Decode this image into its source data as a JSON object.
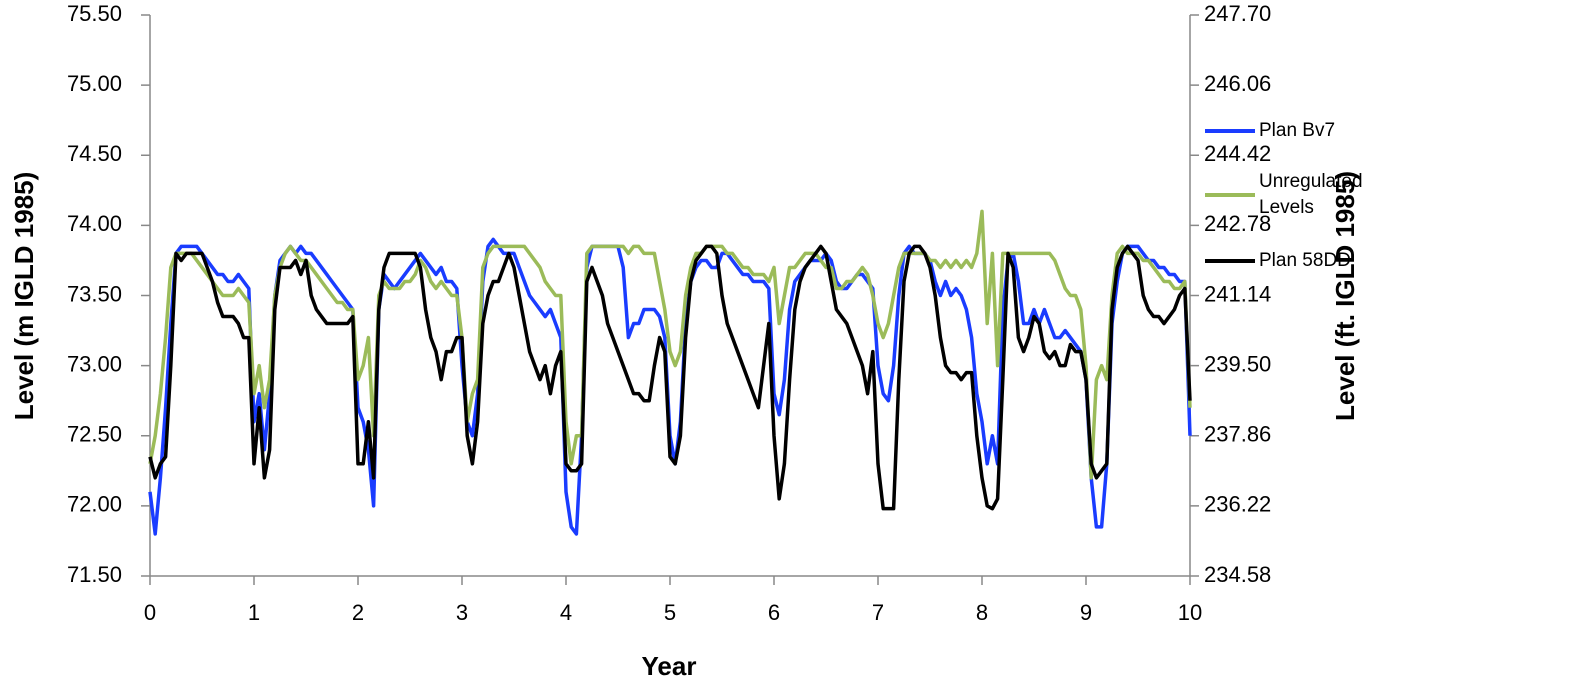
{
  "chart_data": {
    "type": "line",
    "y_label": "Level (m IGLD 1985)",
    "y2_label": "Level (ft. IGLD 1985)",
    "x_label": "Year",
    "xlim": [
      0,
      10
    ],
    "xticks": [
      0,
      1,
      2,
      3,
      4,
      5,
      6,
      7,
      8,
      9,
      10
    ],
    "ylim": [
      71.5,
      75.5
    ],
    "yticks": [
      {
        "value": 71.5,
        "label": "71.50"
      },
      {
        "value": 72,
        "label": "72.00"
      },
      {
        "value": 72.5,
        "label": "72.50"
      },
      {
        "value": 73,
        "label": "73.00"
      },
      {
        "value": 73.5,
        "label": "73.50"
      },
      {
        "value": 74,
        "label": "74.00"
      },
      {
        "value": 74.5,
        "label": "74.50"
      },
      {
        "value": 75,
        "label": "75.00"
      },
      {
        "value": 75.5,
        "label": "75.50"
      }
    ],
    "y2lim": [
      234.58,
      247.7
    ],
    "y2ticks": [
      234.58,
      236.22,
      237.86,
      {
        "value": 239.5,
        "label": "239.50"
      },
      241.14,
      242.78,
      244.42,
      246.06,
      {
        "value": 247.7,
        "label": "247.70"
      }
    ],
    "legend": "right",
    "x": [
      0,
      0.05,
      0.1,
      0.15,
      0.2,
      0.25,
      0.3,
      0.35,
      0.4,
      0.45,
      0.5,
      0.55,
      0.6,
      0.65,
      0.7,
      0.75,
      0.8,
      0.85,
      0.9,
      0.95,
      1,
      1.05,
      1.1,
      1.15,
      1.2,
      1.25,
      1.3,
      1.35,
      1.4,
      1.45,
      1.5,
      1.55,
      1.6,
      1.65,
      1.7,
      1.75,
      1.8,
      1.85,
      1.9,
      1.95,
      2,
      2.05,
      2.1,
      2.15,
      2.2,
      2.25,
      2.3,
      2.35,
      2.4,
      2.45,
      2.5,
      2.55,
      2.6,
      2.65,
      2.7,
      2.75,
      2.8,
      2.85,
      2.9,
      2.95,
      3,
      3.05,
      3.1,
      3.15,
      3.2,
      3.25,
      3.3,
      3.35,
      3.4,
      3.45,
      3.5,
      3.55,
      3.6,
      3.65,
      3.7,
      3.75,
      3.8,
      3.85,
      3.9,
      3.95,
      4,
      4.05,
      4.1,
      4.15,
      4.2,
      4.25,
      4.3,
      4.35,
      4.4,
      4.45,
      4.5,
      4.55,
      4.6,
      4.65,
      4.7,
      4.75,
      4.8,
      4.85,
      4.9,
      4.95,
      5,
      5.05,
      5.1,
      5.15,
      5.2,
      5.25,
      5.3,
      5.35,
      5.4,
      5.45,
      5.5,
      5.55,
      5.6,
      5.65,
      5.7,
      5.75,
      5.8,
      5.85,
      5.9,
      5.95,
      6,
      6.05,
      6.1,
      6.15,
      6.2,
      6.25,
      6.3,
      6.35,
      6.4,
      6.45,
      6.5,
      6.55,
      6.6,
      6.65,
      6.7,
      6.75,
      6.8,
      6.85,
      6.9,
      6.95,
      7,
      7.05,
      7.1,
      7.15,
      7.2,
      7.25,
      7.3,
      7.35,
      7.4,
      7.45,
      7.5,
      7.55,
      7.6,
      7.65,
      7.7,
      7.75,
      7.8,
      7.85,
      7.9,
      7.95,
      8,
      8.05,
      8.1,
      8.15,
      8.2,
      8.25,
      8.3,
      8.35,
      8.4,
      8.45,
      8.5,
      8.55,
      8.6,
      8.65,
      8.7,
      8.75,
      8.8,
      8.85,
      8.9,
      8.95,
      9,
      9.05,
      9.1,
      9.15,
      9.2,
      9.25,
      9.3,
      9.35,
      9.4,
      9.45,
      9.5,
      9.55,
      9.6,
      9.65,
      9.7,
      9.75,
      9.8,
      9.85,
      9.9,
      9.95,
      10
    ],
    "series": [
      {
        "name": "Plan Bv7",
        "color": "#1a3cff",
        "values": [
          72.1,
          71.8,
          72.2,
          72.7,
          73.3,
          73.8,
          73.85,
          73.85,
          73.85,
          73.85,
          73.8,
          73.75,
          73.7,
          73.65,
          73.65,
          73.6,
          73.6,
          73.65,
          73.6,
          73.55,
          72.6,
          72.8,
          72.4,
          72.8,
          73.5,
          73.75,
          73.8,
          73.85,
          73.8,
          73.85,
          73.8,
          73.8,
          73.75,
          73.7,
          73.65,
          73.6,
          73.55,
          73.5,
          73.45,
          73.4,
          72.7,
          72.6,
          72.4,
          72.0,
          73.4,
          73.65,
          73.6,
          73.55,
          73.6,
          73.65,
          73.7,
          73.75,
          73.8,
          73.75,
          73.7,
          73.65,
          73.7,
          73.6,
          73.6,
          73.55,
          73.0,
          72.6,
          72.5,
          72.8,
          73.6,
          73.85,
          73.9,
          73.85,
          73.8,
          73.8,
          73.8,
          73.7,
          73.6,
          73.5,
          73.45,
          73.4,
          73.35,
          73.4,
          73.3,
          73.2,
          72.1,
          71.85,
          71.8,
          72.5,
          73.7,
          73.85,
          73.85,
          73.85,
          73.85,
          73.85,
          73.85,
          73.7,
          73.2,
          73.3,
          73.3,
          73.4,
          73.4,
          73.4,
          73.35,
          73.2,
          72.5,
          72.3,
          72.6,
          73.3,
          73.6,
          73.7,
          73.75,
          73.75,
          73.7,
          73.7,
          73.8,
          73.8,
          73.75,
          73.7,
          73.65,
          73.65,
          73.6,
          73.6,
          73.6,
          73.55,
          72.8,
          72.65,
          72.9,
          73.4,
          73.6,
          73.65,
          73.7,
          73.75,
          73.75,
          73.75,
          73.8,
          73.75,
          73.6,
          73.55,
          73.55,
          73.6,
          73.65,
          73.65,
          73.6,
          73.55,
          73.0,
          72.8,
          72.75,
          73.0,
          73.5,
          73.8,
          73.85,
          73.8,
          73.8,
          73.8,
          73.75,
          73.6,
          73.5,
          73.6,
          73.5,
          73.55,
          73.5,
          73.4,
          73.2,
          72.8,
          72.6,
          72.3,
          72.5,
          72.3,
          73.4,
          73.75,
          73.8,
          73.6,
          73.3,
          73.3,
          73.4,
          73.3,
          73.4,
          73.3,
          73.2,
          73.2,
          73.25,
          73.2,
          73.15,
          73.1,
          72.9,
          72.2,
          71.85,
          71.85,
          72.3,
          73.3,
          73.6,
          73.8,
          73.85,
          73.85,
          73.85,
          73.8,
          73.75,
          73.75,
          73.7,
          73.7,
          73.65,
          73.65,
          73.6,
          73.6,
          72.5
        ]
      },
      {
        "name": "Unregulated Levels",
        "color": "#9bbb59",
        "values": [
          72.3,
          72.5,
          72.8,
          73.2,
          73.7,
          73.8,
          73.8,
          73.8,
          73.8,
          73.75,
          73.7,
          73.65,
          73.6,
          73.55,
          73.5,
          73.5,
          73.5,
          73.55,
          73.5,
          73.45,
          72.8,
          73.0,
          72.7,
          72.9,
          73.5,
          73.7,
          73.8,
          73.85,
          73.8,
          73.75,
          73.75,
          73.7,
          73.65,
          73.6,
          73.55,
          73.5,
          73.45,
          73.45,
          73.4,
          73.4,
          72.9,
          73.0,
          73.2,
          72.5,
          73.5,
          73.6,
          73.55,
          73.55,
          73.55,
          73.6,
          73.6,
          73.65,
          73.75,
          73.7,
          73.6,
          73.55,
          73.6,
          73.55,
          73.5,
          73.5,
          73.2,
          72.6,
          72.8,
          72.9,
          73.7,
          73.8,
          73.85,
          73.85,
          73.85,
          73.85,
          73.85,
          73.85,
          73.85,
          73.8,
          73.75,
          73.7,
          73.6,
          73.55,
          73.5,
          73.5,
          72.6,
          72.3,
          72.5,
          72.5,
          73.8,
          73.85,
          73.85,
          73.85,
          73.85,
          73.85,
          73.85,
          73.85,
          73.8,
          73.85,
          73.85,
          73.8,
          73.8,
          73.8,
          73.6,
          73.4,
          73.1,
          73.0,
          73.1,
          73.5,
          73.7,
          73.8,
          73.8,
          73.85,
          73.85,
          73.85,
          73.85,
          73.8,
          73.8,
          73.75,
          73.7,
          73.7,
          73.65,
          73.65,
          73.65,
          73.6,
          73.7,
          73.3,
          73.5,
          73.7,
          73.7,
          73.75,
          73.8,
          73.8,
          73.8,
          73.75,
          73.7,
          73.7,
          73.55,
          73.55,
          73.6,
          73.6,
          73.65,
          73.7,
          73.65,
          73.5,
          73.3,
          73.2,
          73.3,
          73.5,
          73.7,
          73.8,
          73.8,
          73.8,
          73.8,
          73.8,
          73.75,
          73.75,
          73.7,
          73.75,
          73.7,
          73.75,
          73.7,
          73.75,
          73.7,
          73.8,
          74.1,
          73.3,
          73.8,
          73.0,
          73.8,
          73.8,
          73.8,
          73.8,
          73.8,
          73.8,
          73.8,
          73.8,
          73.8,
          73.8,
          73.75,
          73.65,
          73.55,
          73.5,
          73.5,
          73.4,
          73.0,
          72.2,
          72.9,
          73.0,
          72.9,
          73.5,
          73.8,
          73.85,
          73.8,
          73.8,
          73.8,
          73.75,
          73.75,
          73.7,
          73.65,
          73.6,
          73.6,
          73.55,
          73.55,
          73.6,
          72.7
        ]
      },
      {
        "name": "Plan 58DD",
        "color": "#000000",
        "values": [
          72.35,
          72.2,
          72.3,
          72.35,
          73.0,
          73.8,
          73.75,
          73.8,
          73.8,
          73.8,
          73.8,
          73.7,
          73.6,
          73.45,
          73.35,
          73.35,
          73.35,
          73.3,
          73.2,
          73.2,
          72.3,
          72.7,
          72.2,
          72.4,
          73.4,
          73.7,
          73.7,
          73.7,
          73.75,
          73.65,
          73.75,
          73.5,
          73.4,
          73.35,
          73.3,
          73.3,
          73.3,
          73.3,
          73.3,
          73.35,
          72.3,
          72.3,
          72.6,
          72.2,
          73.4,
          73.7,
          73.8,
          73.8,
          73.8,
          73.8,
          73.8,
          73.8,
          73.7,
          73.4,
          73.2,
          73.1,
          72.9,
          73.1,
          73.1,
          73.2,
          73.2,
          72.5,
          72.3,
          72.6,
          73.3,
          73.5,
          73.6,
          73.6,
          73.7,
          73.8,
          73.7,
          73.5,
          73.3,
          73.1,
          73.0,
          72.9,
          73.0,
          72.8,
          73.0,
          73.1,
          72.3,
          72.25,
          72.25,
          72.3,
          73.6,
          73.7,
          73.6,
          73.5,
          73.3,
          73.2,
          73.1,
          73.0,
          72.9,
          72.8,
          72.8,
          72.75,
          72.75,
          73.0,
          73.2,
          73.1,
          72.35,
          72.3,
          72.5,
          73.2,
          73.6,
          73.75,
          73.8,
          73.85,
          73.85,
          73.8,
          73.5,
          73.3,
          73.2,
          73.1,
          73.0,
          72.9,
          72.8,
          72.7,
          73.0,
          73.3,
          72.5,
          72.05,
          72.3,
          72.9,
          73.4,
          73.6,
          73.7,
          73.75,
          73.8,
          73.85,
          73.8,
          73.6,
          73.4,
          73.35,
          73.3,
          73.2,
          73.1,
          73.0,
          72.8,
          73.1,
          72.3,
          71.98,
          71.98,
          71.98,
          72.9,
          73.6,
          73.8,
          73.85,
          73.85,
          73.8,
          73.7,
          73.5,
          73.2,
          73.0,
          72.95,
          72.95,
          72.9,
          72.95,
          72.95,
          72.5,
          72.2,
          72.0,
          71.98,
          72.05,
          72.9,
          73.8,
          73.7,
          73.2,
          73.1,
          73.2,
          73.35,
          73.3,
          73.1,
          73.05,
          73.1,
          73.0,
          73.0,
          73.15,
          73.1,
          73.1,
          72.9,
          72.3,
          72.2,
          72.25,
          72.3,
          73.4,
          73.7,
          73.8,
          73.85,
          73.8,
          73.75,
          73.5,
          73.4,
          73.35,
          73.35,
          73.3,
          73.35,
          73.4,
          73.5,
          73.55,
          72.75
        ]
      }
    ]
  }
}
